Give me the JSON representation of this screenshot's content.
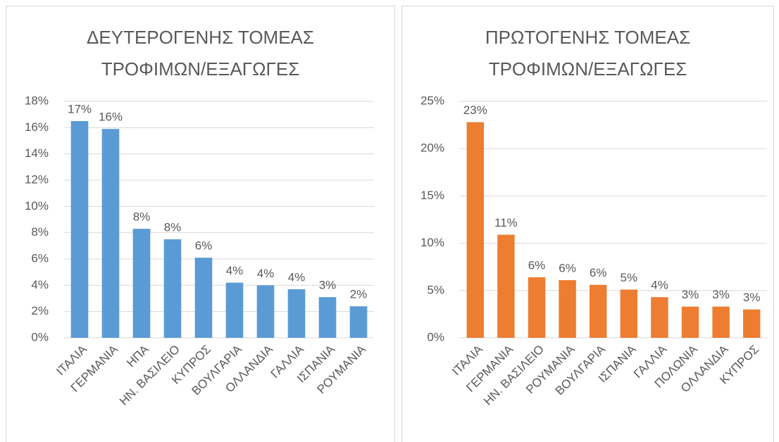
{
  "chart_data": [
    {
      "type": "bar",
      "title": "ΔΕΥΤΕΡΟΓΕΝΗΣ ΤΟΜΕΑΣ ΤΡΟΦΙΜΩΝ/ΕΞΑΓΩΓΕΣ",
      "categories": [
        "ΙΤΑΛΙΑ",
        "ΓΕΡΜΑΝΙΑ",
        "ΗΠΑ",
        "ΗΝ. ΒΑΣΙΛΕΙΟ",
        "ΚΥΠΡΟΣ",
        "ΒΟΥΛΓΑΡΙΑ",
        "ΟΛΛΑΝΔΙΑ",
        "ΓΑΛΛΙΑ",
        "ΙΣΠΑΝΙΑ",
        "ΡΟΥΜΑΝΙΑ"
      ],
      "values": [
        16.5,
        15.9,
        8.3,
        7.5,
        6.1,
        4.2,
        4.0,
        3.7,
        3.1,
        2.4
      ],
      "value_labels": [
        "17%",
        "16%",
        "8%",
        "8%",
        "6%",
        "4%",
        "4%",
        "4%",
        "3%",
        "2%"
      ],
      "color": "#5b9bd5",
      "ylim": [
        0,
        18
      ],
      "yticks": [
        {
          "value": 0,
          "label": "0%"
        },
        {
          "value": 2,
          "label": "2%"
        },
        {
          "value": 4,
          "label": "4%"
        },
        {
          "value": 6,
          "label": "6%"
        },
        {
          "value": 8,
          "label": "8%"
        },
        {
          "value": 10,
          "label": "10%"
        },
        {
          "value": 12,
          "label": "12%"
        },
        {
          "value": 14,
          "label": "14%"
        },
        {
          "value": 16,
          "label": "16%"
        },
        {
          "value": 18,
          "label": "18%"
        }
      ],
      "grid": true
    },
    {
      "type": "bar",
      "title": "ΠΡΩΤΟΓΕΝΗΣ ΤΟΜΕΑΣ ΤΡΟΦΙΜΩΝ/ΕΞΑΓΩΓΕΣ",
      "categories": [
        "ΙΤΑΛΙΑ",
        "ΓΕΡΜΑΝΙΑ",
        "ΗΝ. ΒΑΣΙΛΕΙΟ",
        "ΡΟΥΜΑΝΙΑ",
        "ΒΟΥΛΓΑΡΙΑ",
        "ΙΣΠΑΝΙΑ",
        "ΓΑΛΛΙΑ",
        "ΠΟΛΩΝΙΑ",
        "ΟΛΛΑΝΔΙΑ",
        "ΚΥΠΡΟΣ"
      ],
      "values": [
        22.8,
        10.9,
        6.4,
        6.1,
        5.6,
        5.1,
        4.3,
        3.3,
        3.3,
        3.0
      ],
      "value_labels": [
        "23%",
        "11%",
        "6%",
        "6%",
        "6%",
        "5%",
        "4%",
        "3%",
        "3%",
        "3%"
      ],
      "color": "#ed7d31",
      "ylim": [
        0,
        25
      ],
      "yticks": [
        {
          "value": 0,
          "label": "0%"
        },
        {
          "value": 5,
          "label": "5%"
        },
        {
          "value": 10,
          "label": "10%"
        },
        {
          "value": 15,
          "label": "15%"
        },
        {
          "value": 20,
          "label": "20%"
        },
        {
          "value": 25,
          "label": "25%"
        }
      ],
      "grid": true
    }
  ]
}
